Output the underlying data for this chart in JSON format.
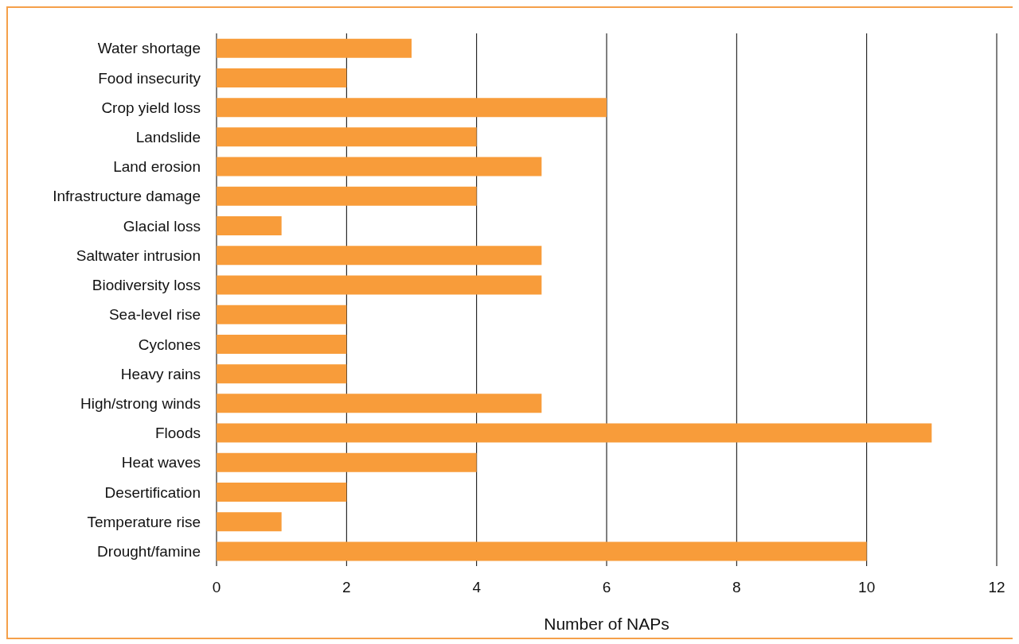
{
  "chart_data": {
    "type": "bar",
    "orientation": "horizontal",
    "xlabel": "Number of NAPs",
    "categories": [
      "Water shortage",
      "Food insecurity",
      "Crop yield loss",
      "Landslide",
      "Land erosion",
      "Infrastructure damage",
      "Glacial loss",
      "Saltwater intrusion",
      "Biodiversity loss",
      "Sea-level rise",
      "Cyclones",
      "Heavy rains",
      "High/strong winds",
      "Floods",
      "Heat waves",
      "Desertification",
      "Temperature rise",
      "Drought/famine"
    ],
    "values": [
      3,
      2,
      6,
      4,
      5,
      4,
      1,
      5,
      5,
      2,
      2,
      2,
      5,
      11,
      4,
      2,
      1,
      10
    ],
    "color": "#f89c3a",
    "xlim": [
      0,
      12
    ],
    "xticks": [
      0,
      2,
      4,
      6,
      8,
      10,
      12
    ],
    "grid": "x"
  }
}
